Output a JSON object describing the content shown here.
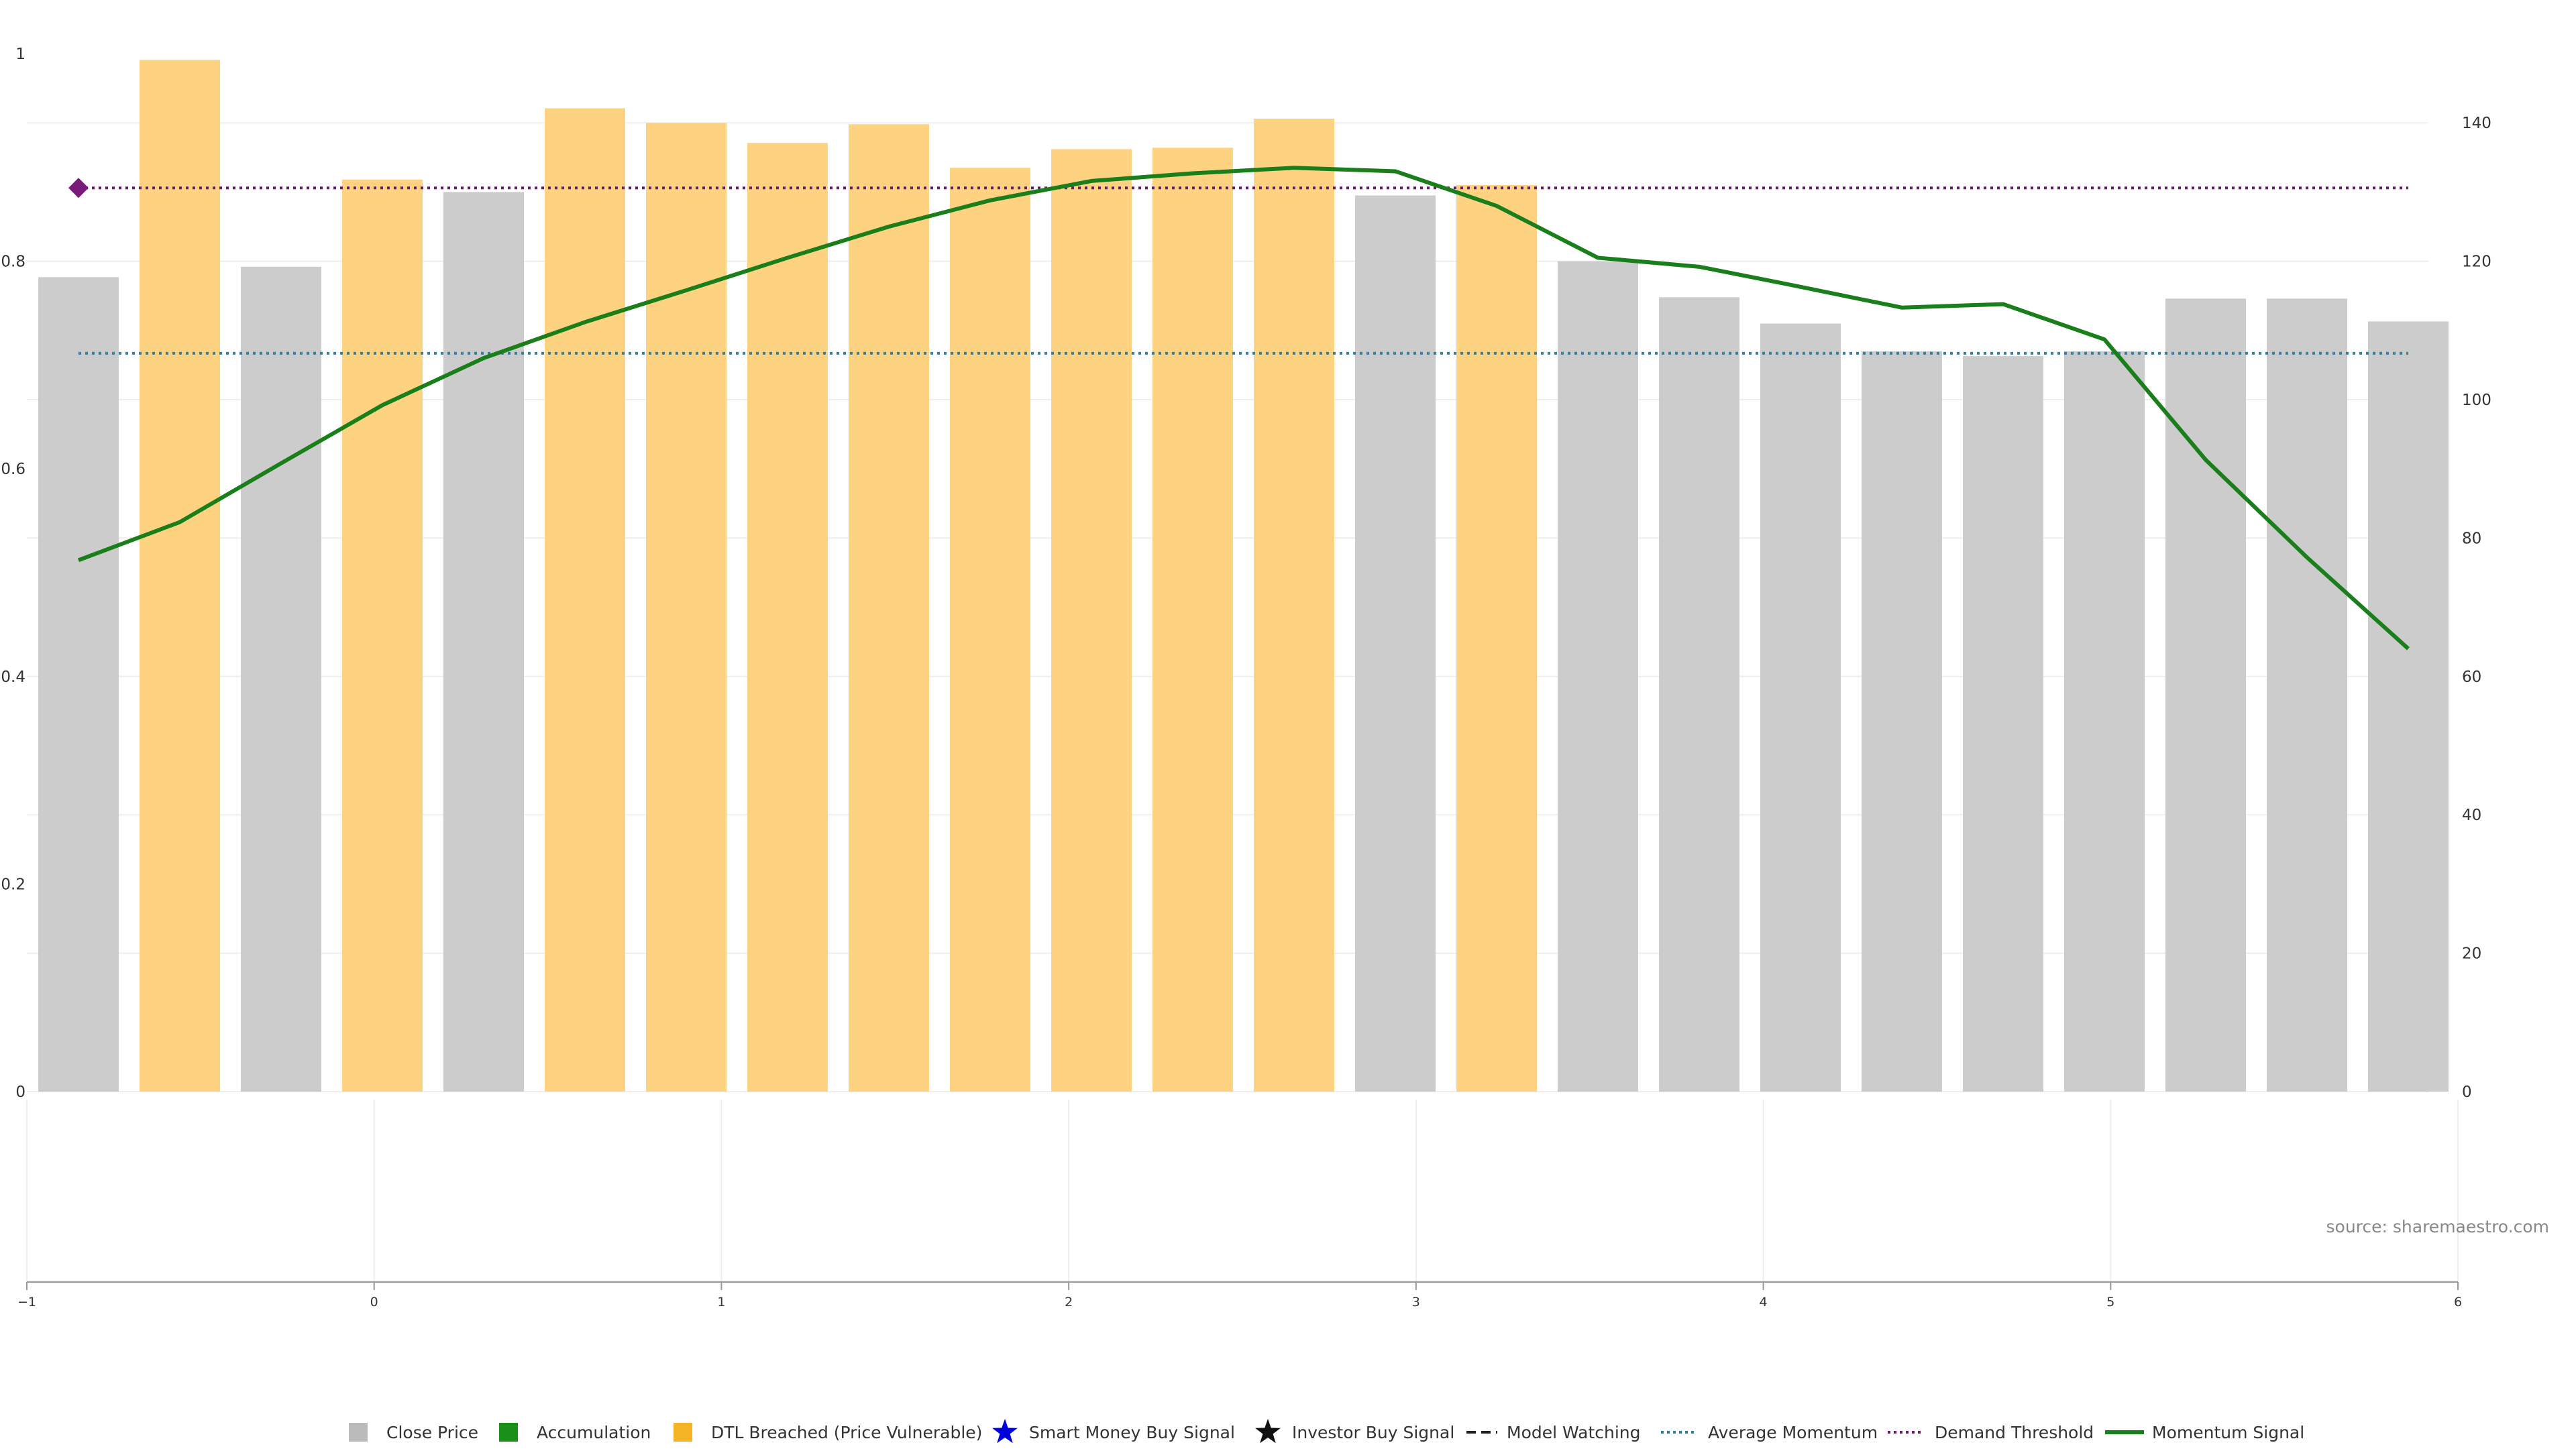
{
  "source_text": "source: sharemaestro.com",
  "colors": {
    "close_bar": "#cccccc",
    "dtl_bar": "#fdd382",
    "momentum_line": "#1a7f1a",
    "average_momentum": "#2f7f9f",
    "demand_threshold": "#6b1a6b",
    "marker": "#7a1a7a",
    "grid": "#eeeeee",
    "axis": "#999999"
  },
  "chart_data": {
    "type": "bar",
    "title": "",
    "xlabel": "",
    "ylabel": "",
    "left_axis": {
      "ylim": [
        0,
        1
      ],
      "ticks": [
        "0",
        "0.2",
        "0.4",
        "0.6",
        "0.8",
        "1"
      ]
    },
    "right_axis": {
      "ylim": [
        0,
        150
      ],
      "ticks": [
        "0",
        "20",
        "40",
        "60",
        "80",
        "100",
        "120",
        "140"
      ]
    },
    "lower_axis": {
      "xlim": [
        -1,
        6
      ],
      "ticks": [
        "−1",
        "0",
        "1",
        "2",
        "3",
        "4",
        "5",
        "6"
      ]
    },
    "grid": true,
    "bars": {
      "categories": 24,
      "values": [
        117.7,
        149.1,
        119.2,
        131.8,
        130.0,
        142.1,
        140.0,
        137.1,
        139.8,
        133.5,
        136.2,
        136.4,
        140.6,
        129.5,
        131.0,
        120.0,
        114.8,
        111.0,
        107.0,
        106.3,
        107.0,
        114.6,
        114.6,
        111.3
      ],
      "states": [
        "close",
        "dtl",
        "close",
        "dtl",
        "close",
        "dtl",
        "dtl",
        "dtl",
        "dtl",
        "dtl",
        "dtl",
        "dtl",
        "dtl",
        "close",
        "dtl",
        "close",
        "close",
        "close",
        "close",
        "close",
        "close",
        "close",
        "close",
        "close"
      ]
    },
    "momentum_signal": [
      76.8,
      82.3,
      90.8,
      99.2,
      106.0,
      111.2,
      115.8,
      120.5,
      125.0,
      128.8,
      131.6,
      132.7,
      133.5,
      133.0,
      128.0,
      120.5,
      119.2,
      116.3,
      113.3,
      113.8,
      108.7,
      91.3,
      77.2,
      64.0
    ],
    "average_momentum": 106.7,
    "demand_threshold": 130.6,
    "legend_position": "bottom-center",
    "legend": [
      {
        "label": "Close Price",
        "symbol": "square",
        "color": "#bbbbbb"
      },
      {
        "label": "Accumulation",
        "symbol": "square",
        "color": "#1a8f1a"
      },
      {
        "label": "DTL Breached (Price Vulnerable)",
        "symbol": "square",
        "color": "#f5b326"
      },
      {
        "label": "Smart Money Buy Signal",
        "symbol": "star",
        "color": "#0000dd"
      },
      {
        "label": "Investor Buy Signal",
        "symbol": "star",
        "color": "#111111"
      },
      {
        "label": "Model Watching",
        "symbol": "dash",
        "color": "#222222"
      },
      {
        "label": "Average Momentum",
        "symbol": "dotted",
        "color": "#2f7f9f"
      },
      {
        "label": "Demand Threshold",
        "symbol": "dotted",
        "color": "#6b1a6b"
      },
      {
        "label": "Momentum Signal",
        "symbol": "line",
        "color": "#1a7f1a"
      }
    ]
  }
}
